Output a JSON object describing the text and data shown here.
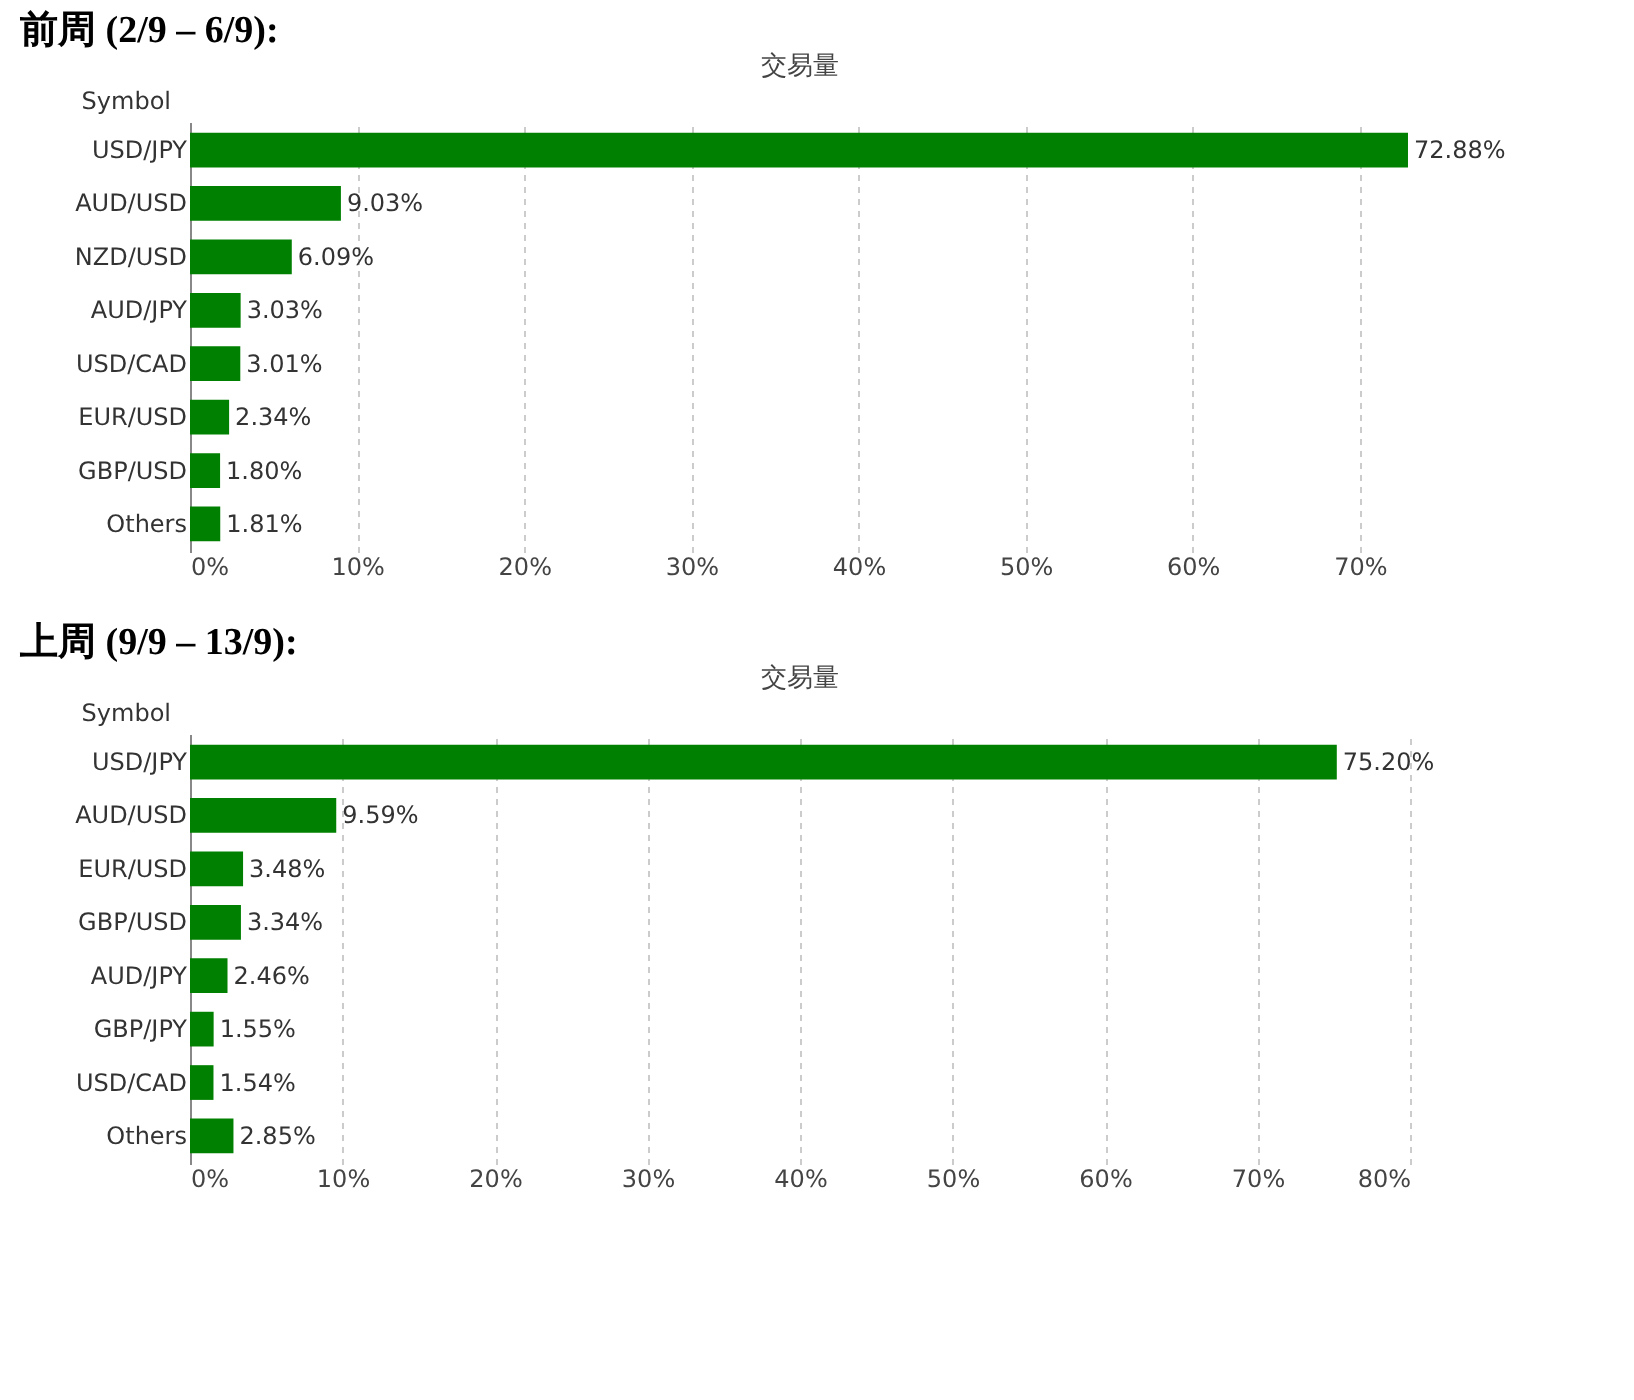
{
  "chart_data": [
    {
      "type": "bar",
      "orientation": "horizontal",
      "subtitle": "前周 (2/9 – 6/9):",
      "title": "交易量",
      "ylabel": "Symbol",
      "categories": [
        "USD/JPY",
        "AUD/USD",
        "NZD/USD",
        "AUD/JPY",
        "USD/CAD",
        "EUR/USD",
        "GBP/USD",
        "Others"
      ],
      "values": [
        72.88,
        9.03,
        6.09,
        3.03,
        3.01,
        2.34,
        1.8,
        1.81
      ],
      "value_labels": [
        "72.88%",
        "9.03%",
        "6.09%",
        "3.03%",
        "3.01%",
        "2.34%",
        "1.80%",
        "1.81%"
      ],
      "color": "#008000",
      "xlim": [
        0,
        73
      ],
      "xticks": [
        {
          "value": 0,
          "label": "0%"
        },
        {
          "value": 10,
          "label": "10%"
        },
        {
          "value": 20,
          "label": "20%"
        },
        {
          "value": 30,
          "label": "30%"
        },
        {
          "value": 40,
          "label": "40%"
        },
        {
          "value": 50,
          "label": "50%"
        },
        {
          "value": 60,
          "label": "60%"
        },
        {
          "value": 70,
          "label": "70%"
        }
      ],
      "grid": "x"
    },
    {
      "type": "bar",
      "orientation": "horizontal",
      "subtitle": "上周 (9/9 – 13/9):",
      "title": "交易量",
      "ylabel": "Symbol",
      "categories": [
        "USD/JPY",
        "AUD/USD",
        "EUR/USD",
        "GBP/USD",
        "AUD/JPY",
        "GBP/JPY",
        "USD/CAD",
        "Others"
      ],
      "values": [
        75.2,
        9.59,
        3.48,
        3.34,
        2.46,
        1.55,
        1.54,
        2.85
      ],
      "value_labels": [
        "75.20%",
        "9.59%",
        "3.48%",
        "3.34%",
        "2.46%",
        "1.55%",
        "1.54%",
        "2.85%"
      ],
      "color": "#008000",
      "xlim": [
        0,
        80
      ],
      "xticks": [
        {
          "value": 0,
          "label": "0%"
        },
        {
          "value": 10,
          "label": "10%"
        },
        {
          "value": 20,
          "label": "20%"
        },
        {
          "value": 30,
          "label": "30%"
        },
        {
          "value": 40,
          "label": "40%"
        },
        {
          "value": 50,
          "label": "50%"
        },
        {
          "value": 60,
          "label": "60%"
        },
        {
          "value": 70,
          "label": "70%"
        },
        {
          "value": 80,
          "label": "80%"
        }
      ],
      "grid": "x"
    }
  ]
}
